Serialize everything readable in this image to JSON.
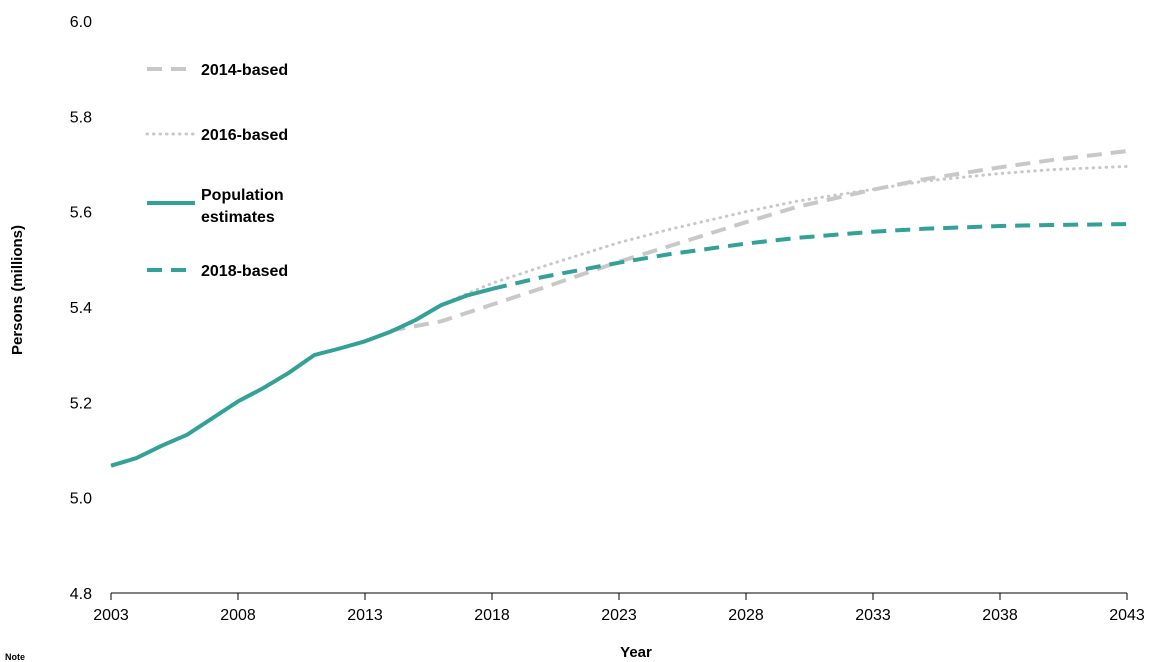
{
  "chart_data": {
    "type": "line",
    "xlabel": "Year",
    "ylabel": "Persons (millions)",
    "xlim": [
      2003,
      2043
    ],
    "ylim": [
      4.8,
      6.0
    ],
    "x_ticks": [
      "2003",
      "2008",
      "2013",
      "2018",
      "2023",
      "2028",
      "2033",
      "2038",
      "2043"
    ],
    "y_ticks": [
      "4.8",
      "5.0",
      "5.2",
      "5.4",
      "5.6",
      "5.8",
      "6.0"
    ],
    "legend_position": "top-left",
    "note": "Note",
    "series": [
      {
        "name": "2014-based",
        "color": "#c8c8c8",
        "style": "dashed",
        "points": [
          [
            2014,
            5.35
          ],
          [
            2016,
            5.37
          ],
          [
            2018,
            5.405
          ],
          [
            2020,
            5.44
          ],
          [
            2023,
            5.495
          ],
          [
            2025,
            5.528
          ],
          [
            2028,
            5.578
          ],
          [
            2030,
            5.61
          ],
          [
            2033,
            5.646
          ],
          [
            2035,
            5.668
          ],
          [
            2038,
            5.693
          ],
          [
            2040,
            5.708
          ],
          [
            2043,
            5.727
          ]
        ]
      },
      {
        "name": "2016-based",
        "color": "#c8c8c8",
        "style": "dotted",
        "points": [
          [
            2016,
            5.405
          ],
          [
            2018,
            5.45
          ],
          [
            2020,
            5.485
          ],
          [
            2023,
            5.535
          ],
          [
            2025,
            5.563
          ],
          [
            2028,
            5.6
          ],
          [
            2030,
            5.622
          ],
          [
            2033,
            5.647
          ],
          [
            2035,
            5.664
          ],
          [
            2038,
            5.68
          ],
          [
            2040,
            5.688
          ],
          [
            2043,
            5.695
          ]
        ]
      },
      {
        "name": "Population estimates",
        "color": "#34a198",
        "style": "solid",
        "points": [
          [
            2003,
            5.067
          ],
          [
            2004,
            5.083
          ],
          [
            2005,
            5.109
          ],
          [
            2006,
            5.132
          ],
          [
            2007,
            5.167
          ],
          [
            2008,
            5.202
          ],
          [
            2009,
            5.23
          ],
          [
            2010,
            5.262
          ],
          [
            2011,
            5.299
          ],
          [
            2012,
            5.313
          ],
          [
            2013,
            5.328
          ],
          [
            2014,
            5.348
          ],
          [
            2015,
            5.373
          ],
          [
            2016,
            5.404
          ],
          [
            2017,
            5.424
          ],
          [
            2018,
            5.438
          ]
        ]
      },
      {
        "name": "2018-based",
        "color": "#34a198",
        "style": "dashed",
        "points": [
          [
            2018,
            5.438
          ],
          [
            2020,
            5.463
          ],
          [
            2023,
            5.493
          ],
          [
            2025,
            5.511
          ],
          [
            2028,
            5.533
          ],
          [
            2030,
            5.545
          ],
          [
            2033,
            5.558
          ],
          [
            2035,
            5.564
          ],
          [
            2038,
            5.57
          ],
          [
            2040,
            5.572
          ],
          [
            2043,
            5.574
          ]
        ]
      }
    ]
  }
}
